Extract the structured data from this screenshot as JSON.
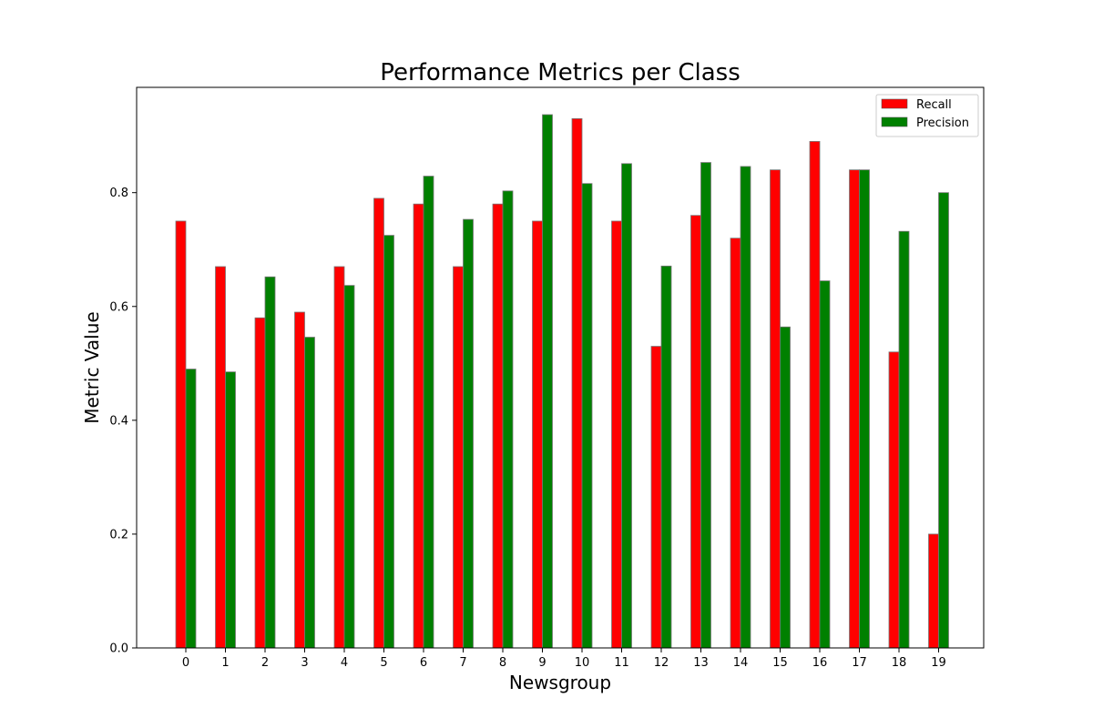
{
  "chart_data": {
    "type": "bar",
    "title": "Performance Metrics per Class",
    "xlabel": "Newsgroup",
    "ylabel": "Metric Value",
    "categories": [
      "0",
      "1",
      "2",
      "3",
      "4",
      "5",
      "6",
      "7",
      "8",
      "9",
      "10",
      "11",
      "12",
      "13",
      "14",
      "15",
      "16",
      "17",
      "18",
      "19"
    ],
    "series": [
      {
        "name": "Recall",
        "color": "#ff0000",
        "values": [
          0.75,
          0.67,
          0.58,
          0.59,
          0.67,
          0.79,
          0.78,
          0.67,
          0.78,
          0.75,
          0.93,
          0.75,
          0.53,
          0.76,
          0.72,
          0.84,
          0.89,
          0.84,
          0.52,
          0.2
        ]
      },
      {
        "name": "Precision",
        "color": "#008000",
        "values": [
          0.49,
          0.485,
          0.652,
          0.546,
          0.637,
          0.725,
          0.829,
          0.753,
          0.803,
          0.937,
          0.816,
          0.851,
          0.671,
          0.853,
          0.846,
          0.564,
          0.645,
          0.84,
          0.732,
          0.8
        ]
      }
    ],
    "ylim": [
      0,
      0.985
    ],
    "yticks": [
      "0.0",
      "0.2",
      "0.4",
      "0.6",
      "0.8"
    ],
    "ytick_values": [
      0.0,
      0.2,
      0.4,
      0.6,
      0.8
    ],
    "legend_position": "top-right",
    "grid": false
  }
}
